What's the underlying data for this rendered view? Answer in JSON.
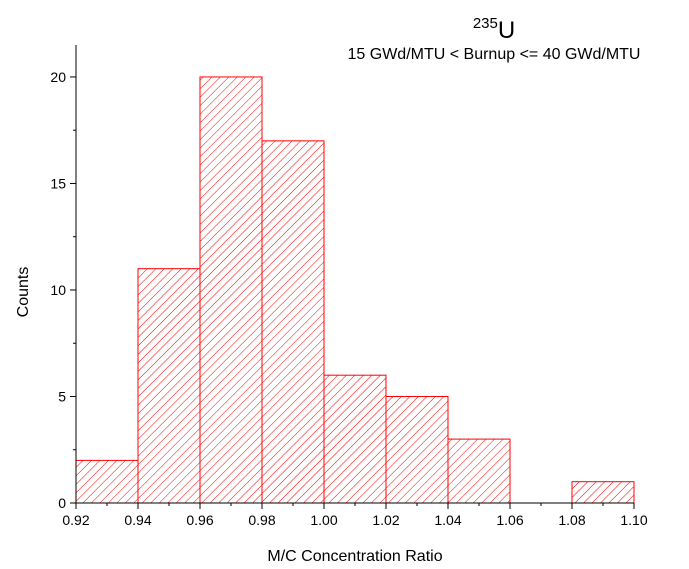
{
  "chart_data": {
    "type": "bar",
    "title": {
      "superscript": "235",
      "symbol": "U"
    },
    "subtitle": "15 GWd/MTU < Burnup <= 40 GWd/MTU",
    "xlabel": "M/C Concentration Ratio",
    "ylabel": "Counts",
    "xlim": [
      0.92,
      1.1
    ],
    "ylim": [
      0,
      21.5
    ],
    "x_ticks": [
      "0.92",
      "0.94",
      "0.96",
      "0.98",
      "1.00",
      "1.02",
      "1.04",
      "1.06",
      "1.08",
      "1.10"
    ],
    "y_ticks": [
      "0",
      "5",
      "10",
      "15",
      "20"
    ],
    "bin_width": 0.02,
    "bins": [
      {
        "start": 0.92,
        "end": 0.94,
        "count": 2
      },
      {
        "start": 0.94,
        "end": 0.96,
        "count": 11
      },
      {
        "start": 0.96,
        "end": 0.98,
        "count": 20
      },
      {
        "start": 0.98,
        "end": 1.0,
        "count": 17
      },
      {
        "start": 1.0,
        "end": 1.02,
        "count": 6
      },
      {
        "start": 1.02,
        "end": 1.04,
        "count": 5
      },
      {
        "start": 1.04,
        "end": 1.06,
        "count": 3
      },
      {
        "start": 1.06,
        "end": 1.08,
        "count": 0
      },
      {
        "start": 1.08,
        "end": 1.1,
        "count": 1
      }
    ],
    "bar_style": {
      "stroke": "#ff0000",
      "hatch": "diagonal"
    },
    "grid": false,
    "legend": "none"
  }
}
